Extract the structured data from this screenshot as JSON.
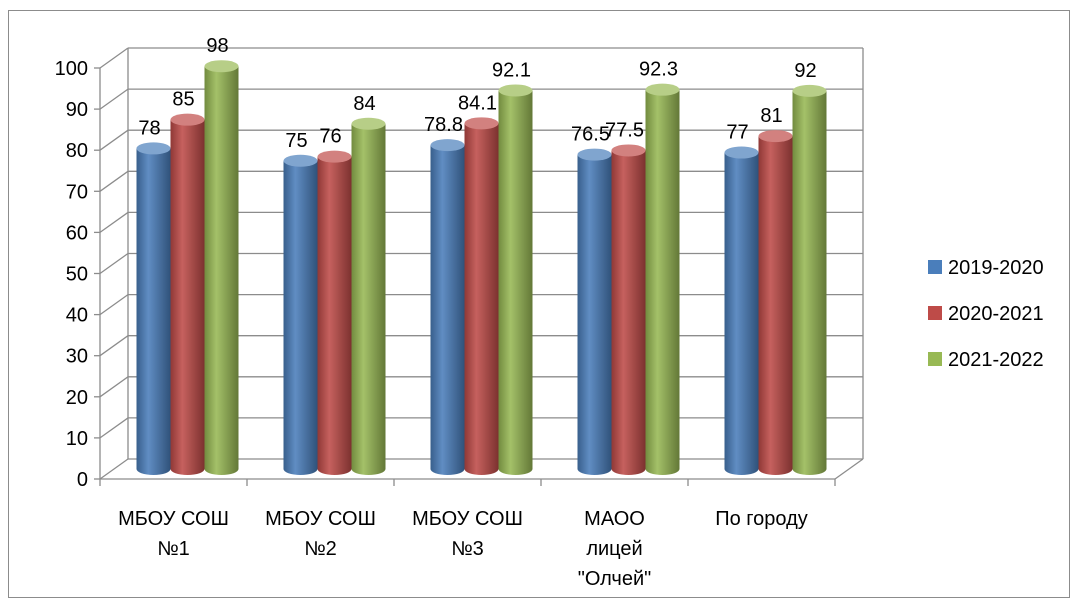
{
  "chart_data": {
    "type": "bar",
    "style": "3d-cylinder",
    "categories": [
      [
        "МБОУ СОШ",
        "№1"
      ],
      [
        "МБОУ СОШ",
        "№2"
      ],
      [
        "МБОУ СОШ",
        "№3"
      ],
      [
        "МАОО",
        "лицей",
        "\"Олчей\""
      ],
      [
        "По городу"
      ]
    ],
    "series": [
      {
        "name": "2019-2020",
        "values": [
          78,
          75,
          78.8,
          76.5,
          77
        ],
        "labels": [
          "78",
          "75",
          "78.8",
          "76.5",
          "77"
        ],
        "color": "#4a7ebb"
      },
      {
        "name": "2020-2021",
        "values": [
          85,
          76,
          84.1,
          77.5,
          81
        ],
        "labels": [
          "85",
          "76",
          "84.1",
          "77.5",
          "81"
        ],
        "color": "#be4b48"
      },
      {
        "name": "2021-2022",
        "values": [
          98,
          84,
          92.1,
          92.3,
          92
        ],
        "labels": [
          "98",
          "84",
          "92.1",
          "92.3",
          "92"
        ],
        "color": "#98b954"
      }
    ],
    "ylim": [
      0,
      100
    ],
    "yticks": [
      "0",
      "10",
      "20",
      "30",
      "40",
      "50",
      "60",
      "70",
      "80",
      "90",
      "100"
    ],
    "grid": true,
    "legend_position": "right"
  }
}
